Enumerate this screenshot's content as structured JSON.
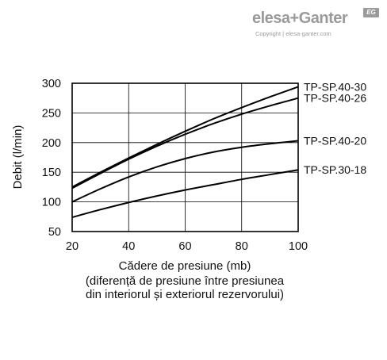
{
  "logo": {
    "brand": "elesa+Ganter",
    "badge": "EG",
    "copyright": "Copyright | elesa-ganter.com"
  },
  "chart_data": {
    "type": "line",
    "title": "",
    "xlabel": "Cădere de presiune (mb)",
    "xlabel_sub1": "(diferență de presiune între presiunea",
    "xlabel_sub2": "din interiorul și exteriorul rezervorului)",
    "ylabel": "Debit (l/min)",
    "xlim": [
      20,
      100
    ],
    "ylim": [
      50,
      300
    ],
    "x_ticks": [
      20,
      40,
      60,
      80,
      100
    ],
    "y_ticks": [
      50,
      100,
      150,
      200,
      250,
      300
    ],
    "grid": true,
    "legend": "direct-labels-right",
    "series": [
      {
        "name": "TP-SP.40-30",
        "x": [
          20,
          30,
          40,
          50,
          60,
          70,
          80,
          90,
          100
        ],
        "y": [
          125,
          150,
          174,
          197,
          219,
          240,
          259,
          277,
          294
        ]
      },
      {
        "name": "TP-SP.40-26",
        "x": [
          20,
          30,
          40,
          50,
          60,
          70,
          80,
          90,
          100
        ],
        "y": [
          123,
          148,
          172,
          194,
          214,
          232,
          248,
          262,
          275
        ]
      },
      {
        "name": "TP-SP.40-20",
        "x": [
          20,
          30,
          40,
          50,
          60,
          70,
          80,
          90,
          100
        ],
        "y": [
          100,
          122,
          142,
          159,
          173,
          184,
          192,
          198,
          203
        ]
      },
      {
        "name": "TP-SP.30-18",
        "x": [
          20,
          30,
          40,
          50,
          60,
          70,
          80,
          90,
          100
        ],
        "y": [
          74,
          87,
          99,
          110,
          120,
          129,
          138,
          146,
          154
        ]
      }
    ]
  }
}
